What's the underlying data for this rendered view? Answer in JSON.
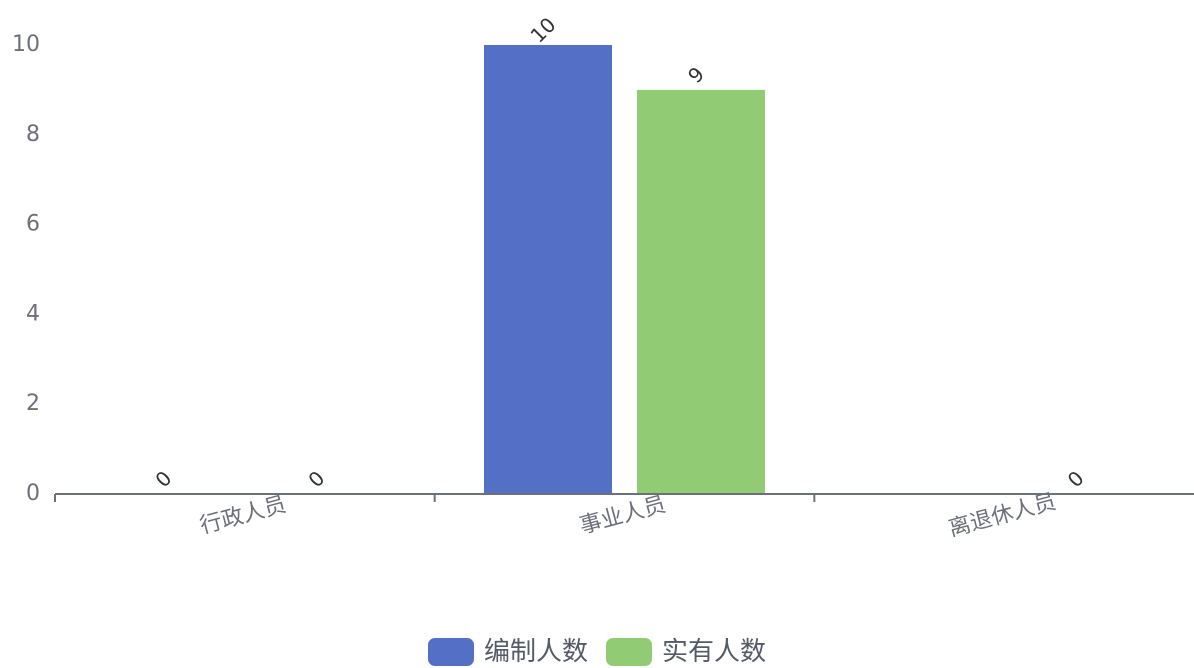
{
  "colors": {
    "axis": "#6e7079",
    "axis_label": "#6e7079",
    "data_label": "#333333",
    "series": [
      "#5470c6",
      "#91cc75"
    ]
  },
  "chart_data": {
    "type": "bar",
    "title": "",
    "xlabel": "",
    "ylabel": "",
    "categories": [
      "行政人员",
      "事业人员",
      "离退休人员"
    ],
    "series": [
      {
        "name": "编制人数",
        "values": [
          0,
          10,
          null
        ]
      },
      {
        "name": "实有人数",
        "values": [
          0,
          9,
          0
        ]
      }
    ],
    "ylim": [
      0,
      10
    ],
    "yticks": [
      "0",
      "2",
      "4",
      "6",
      "8",
      "10"
    ],
    "grid": false,
    "legend_position": "bottom-center",
    "data_labels": true
  }
}
